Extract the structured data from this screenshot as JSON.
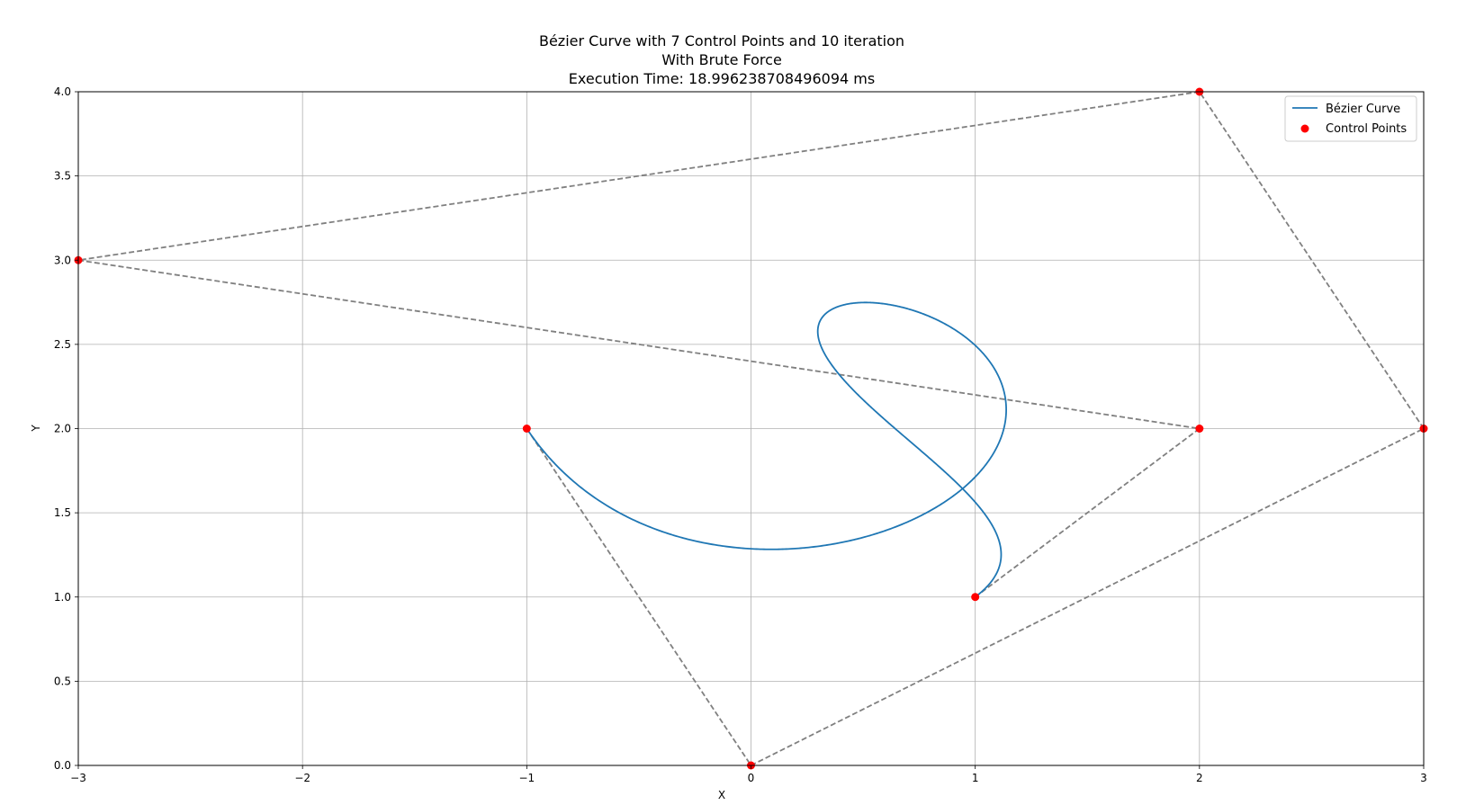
{
  "chart_data": {
    "type": "line",
    "title_lines": [
      "Bézier Curve with 7 Control Points and 10 iteration",
      "With Brute Force",
      "Execution Time: 18.996238708496094 ms"
    ],
    "xlabel": "X",
    "ylabel": "Y",
    "xlim": [
      -3,
      3
    ],
    "ylim": [
      0,
      4
    ],
    "xticks": [
      -3,
      -2,
      -1,
      0,
      1,
      2,
      3
    ],
    "xtick_labels": [
      "−3",
      "−2",
      "−1",
      "0",
      "1",
      "2",
      "3"
    ],
    "yticks": [
      0.0,
      0.5,
      1.0,
      1.5,
      2.0,
      2.5,
      3.0,
      3.5,
      4.0
    ],
    "ytick_labels": [
      "0.0",
      "0.5",
      "1.0",
      "1.5",
      "2.0",
      "2.5",
      "3.0",
      "3.5",
      "4.0"
    ],
    "grid": true,
    "legend": {
      "location": "upper-right",
      "entries": [
        "Bézier Curve",
        "Control Points"
      ]
    },
    "control_points": {
      "x": [
        -1,
        0,
        3,
        2,
        -3,
        2,
        1
      ],
      "y": [
        2,
        0,
        2,
        4,
        3,
        2,
        1
      ]
    },
    "curve_samples": 1024,
    "colors": {
      "curve": "#1f77b4",
      "control_points": "#ff0000",
      "control_polygon": "#808080",
      "grid": "#b0b0b0"
    }
  }
}
